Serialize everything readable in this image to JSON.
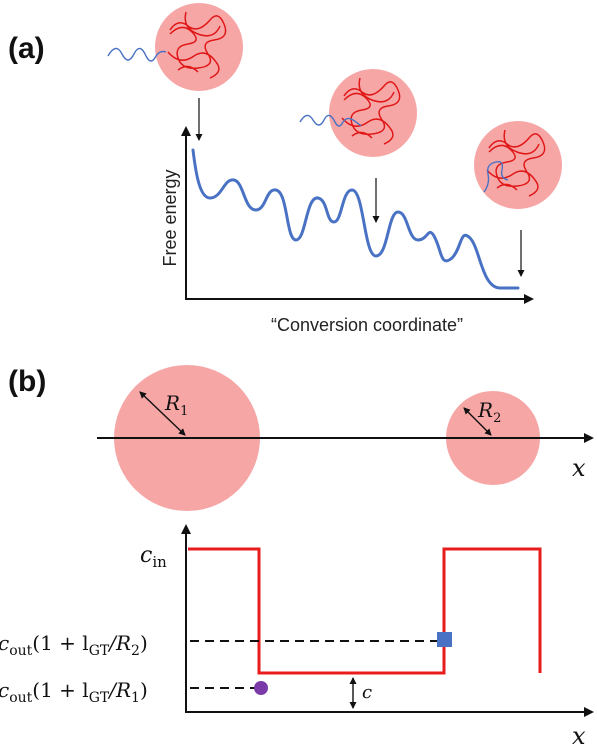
{
  "panel_a": {
    "label": "(a)",
    "ylabel": "Free energy",
    "xlabel": "“Conversion coordinate”"
  },
  "panel_b": {
    "label": "(b)",
    "droplet_1_radius_label": "R",
    "droplet_1_radius_sub": "1",
    "droplet_2_radius_label": "R",
    "droplet_2_radius_sub": "2",
    "x_axis_label": "x",
    "conc_x_axis_label": "x",
    "c_in_main": "c",
    "c_in_sub": "in",
    "level_r2_main": "c",
    "level_r2_sub": "out",
    "level_r2_rest": "(1 + l",
    "level_r2_sub2": "GT",
    "level_r2_tail": "/R",
    "level_r2_sub3": "2",
    "level_r2_close": ")",
    "level_r1_main": "c",
    "level_r1_sub": "out",
    "level_r1_rest": "(1 + l",
    "level_r1_sub2": "GT",
    "level_r1_tail": "/R",
    "level_r1_sub3": "1",
    "level_r1_close": ")",
    "delta_label": "c"
  },
  "colors": {
    "droplet_fill": "#f7a6a6",
    "chain_red": "#e01818",
    "curve_blue": "#4a72c4",
    "step_red": "#e81c1c",
    "square_blue": "#4a72c4",
    "circle_purple": "#7a3aa8"
  }
}
